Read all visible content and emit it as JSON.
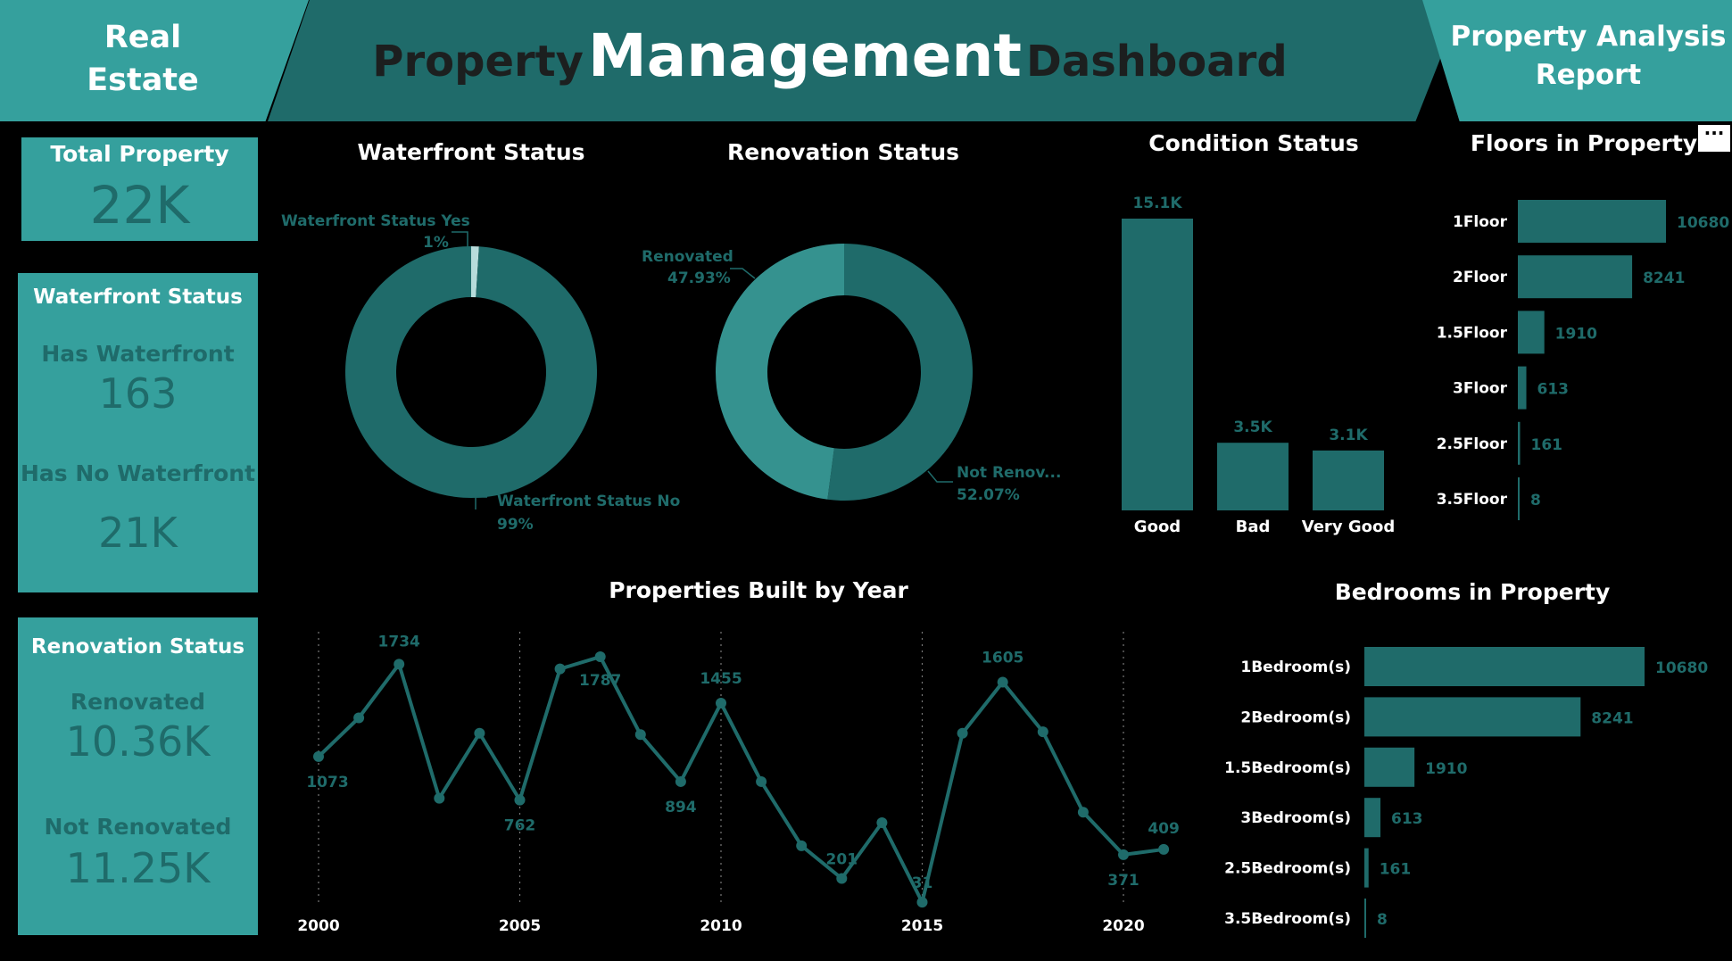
{
  "header": {
    "left_line1": "Real",
    "left_line2": "Estate",
    "title_part1": "Property",
    "title_part2": "Management",
    "title_part3": "Dashboard",
    "right_line1": "Property Analysis",
    "right_line2": "Report"
  },
  "cards": {
    "total": {
      "title": "Total Property",
      "value": "22K"
    },
    "waterfront": {
      "title": "Waterfront Status",
      "label_yes": "Has Waterfront",
      "value_yes": "163",
      "label_no": "Has No Waterfront",
      "value_no": "21K"
    },
    "renovation": {
      "title": "Renovation Status",
      "label_yes": "Renovated",
      "value_yes": "10.36K",
      "label_no": "Not Renovated",
      "value_no": "11.25K"
    }
  },
  "more_button": "···",
  "chart_data": [
    {
      "id": "waterfront",
      "type": "pie",
      "title": "Waterfront Status",
      "slices": [
        {
          "label": "Waterfront Status Yes",
          "value_label": "1%",
          "value": 1,
          "color": "#b7dcdb"
        },
        {
          "label": "Waterfront Status No",
          "value_label": "99%",
          "value": 99,
          "color": "#1f6b6a"
        }
      ]
    },
    {
      "id": "renovation",
      "type": "pie",
      "title": "Renovation Status",
      "slices": [
        {
          "label": "Not Renov...",
          "value_label": "52.07%",
          "value": 52.07,
          "color": "#1f6b6a"
        },
        {
          "label": "Renovated",
          "value_label": "47.93%",
          "value": 47.93,
          "color": "#35928f"
        }
      ]
    },
    {
      "id": "condition",
      "type": "bar",
      "title": "Condition Status",
      "categories": [
        "Good",
        "Bad",
        "Very Good"
      ],
      "values": [
        15100,
        3500,
        3100
      ],
      "data_labels": [
        "15.1K",
        "3.5K",
        "3.1K"
      ],
      "color": "#1f6b6a"
    },
    {
      "id": "floors",
      "type": "bar",
      "orientation": "horizontal",
      "title": "Floors in Property",
      "categories": [
        "1Floor",
        "2Floor",
        "1.5Floor",
        "3Floor",
        "2.5Floor",
        "3.5Floor"
      ],
      "values": [
        10680,
        8241,
        1910,
        613,
        161,
        8
      ],
      "color": "#1f6b6a"
    },
    {
      "id": "built",
      "type": "line",
      "title": "Properties Built by Year",
      "x": [
        2000,
        2001,
        2002,
        2003,
        2004,
        2005,
        2006,
        2007,
        2008,
        2009,
        2010,
        2011,
        2012,
        2013,
        2014,
        2015,
        2016,
        2017,
        2018,
        2019,
        2020,
        2021
      ],
      "values": [
        1073,
        1350,
        1734,
        775,
        1240,
        762,
        1700,
        1787,
        1230,
        894,
        1455,
        894,
        435,
        201,
        600,
        31,
        1240,
        1605,
        1250,
        675,
        371,
        409
      ],
      "data_labels": {
        "0": "1073",
        "2": "1734",
        "5": "762",
        "7": "1787",
        "9": "894",
        "10": "1455",
        "13": "201",
        "15": "31",
        "17": "1605",
        "20": "371",
        "21": "409"
      },
      "x_ticks": [
        2000,
        2005,
        2010,
        2015,
        2020
      ],
      "color": "#1f6b6a"
    },
    {
      "id": "bedrooms",
      "type": "bar",
      "orientation": "horizontal",
      "title": "Bedrooms in Property",
      "categories": [
        "1Bedroom(s)",
        "2Bedroom(s)",
        "1.5Bedroom(s)",
        "3Bedroom(s)",
        "2.5Bedroom(s)",
        "3.5Bedroom(s)"
      ],
      "values": [
        10680,
        8241,
        1910,
        613,
        161,
        8
      ],
      "color": "#1f6b6a"
    }
  ]
}
